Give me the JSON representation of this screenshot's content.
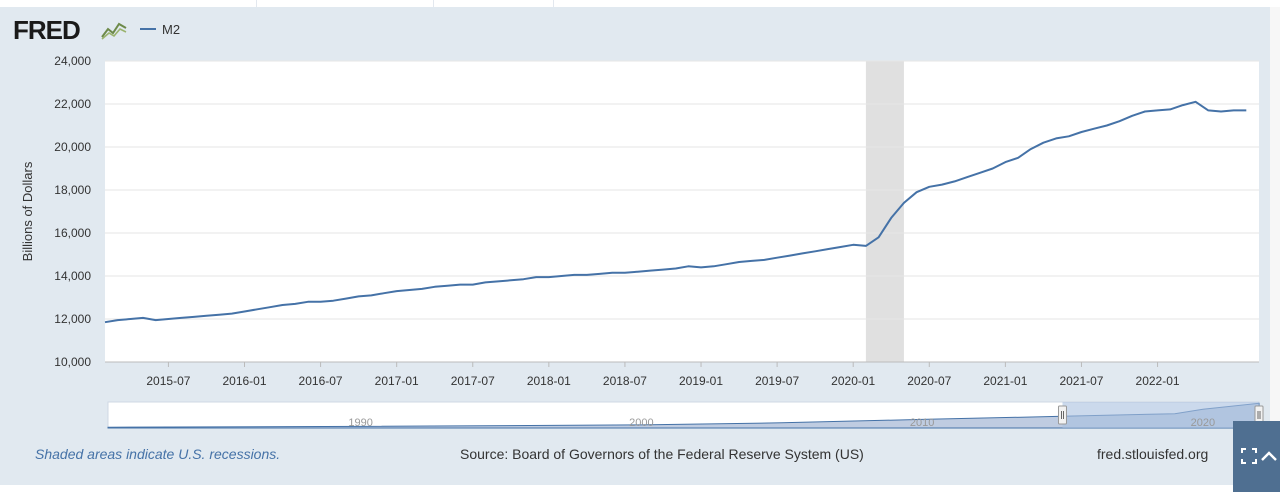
{
  "header": {
    "logo_text": "FRED",
    "legend_label": "M2"
  },
  "colors": {
    "series": "#4572a7",
    "recession": "#e0e0e0",
    "panel": "#e1e9f0",
    "plot_bg": "#ffffff",
    "grid": "#e6e6e6",
    "navigator_fill": "#8ba3c8",
    "navigator_selected": "#a9bfe0"
  },
  "chart_data": {
    "type": "line",
    "title": "M2",
    "xlabel": "",
    "ylabel": "Billions of Dollars",
    "ylim": [
      10000,
      24000
    ],
    "yticks": [
      "10,000",
      "12,000",
      "14,000",
      "16,000",
      "18,000",
      "20,000",
      "22,000",
      "24,000"
    ],
    "xticks": [
      "2015-07",
      "2016-01",
      "2016-07",
      "2017-01",
      "2017-07",
      "2018-01",
      "2018-07",
      "2019-01",
      "2019-07",
      "2020-01",
      "2020-07",
      "2021-01",
      "2021-07",
      "2022-01"
    ],
    "x_range": [
      "2015-02",
      "2022-09"
    ],
    "recession": {
      "start": "2020-02",
      "end": "2020-04"
    },
    "grid": true,
    "series": [
      {
        "name": "M2",
        "frequency": "approx-monthly",
        "points": [
          [
            "2015-02",
            11850
          ],
          [
            "2015-03",
            11950
          ],
          [
            "2015-04",
            12000
          ],
          [
            "2015-05",
            12050
          ],
          [
            "2015-06",
            11950
          ],
          [
            "2015-07",
            12000
          ],
          [
            "2015-08",
            12050
          ],
          [
            "2015-09",
            12100
          ],
          [
            "2015-10",
            12150
          ],
          [
            "2015-11",
            12200
          ],
          [
            "2015-12",
            12250
          ],
          [
            "2016-01",
            12350
          ],
          [
            "2016-02",
            12450
          ],
          [
            "2016-03",
            12550
          ],
          [
            "2016-04",
            12650
          ],
          [
            "2016-05",
            12700
          ],
          [
            "2016-06",
            12800
          ],
          [
            "2016-07",
            12800
          ],
          [
            "2016-08",
            12850
          ],
          [
            "2016-09",
            12950
          ],
          [
            "2016-10",
            13050
          ],
          [
            "2016-11",
            13100
          ],
          [
            "2016-12",
            13200
          ],
          [
            "2017-01",
            13300
          ],
          [
            "2017-02",
            13350
          ],
          [
            "2017-03",
            13400
          ],
          [
            "2017-04",
            13500
          ],
          [
            "2017-05",
            13550
          ],
          [
            "2017-06",
            13600
          ],
          [
            "2017-07",
            13600
          ],
          [
            "2017-08",
            13700
          ],
          [
            "2017-09",
            13750
          ],
          [
            "2017-10",
            13800
          ],
          [
            "2017-11",
            13850
          ],
          [
            "2017-12",
            13950
          ],
          [
            "2018-01",
            13950
          ],
          [
            "2018-02",
            14000
          ],
          [
            "2018-03",
            14050
          ],
          [
            "2018-04",
            14050
          ],
          [
            "2018-05",
            14100
          ],
          [
            "2018-06",
            14150
          ],
          [
            "2018-07",
            14150
          ],
          [
            "2018-08",
            14200
          ],
          [
            "2018-09",
            14250
          ],
          [
            "2018-10",
            14300
          ],
          [
            "2018-11",
            14350
          ],
          [
            "2018-12",
            14450
          ],
          [
            "2019-01",
            14400
          ],
          [
            "2019-02",
            14450
          ],
          [
            "2019-03",
            14550
          ],
          [
            "2019-04",
            14650
          ],
          [
            "2019-05",
            14700
          ],
          [
            "2019-06",
            14750
          ],
          [
            "2019-07",
            14850
          ],
          [
            "2019-08",
            14950
          ],
          [
            "2019-09",
            15050
          ],
          [
            "2019-10",
            15150
          ],
          [
            "2019-11",
            15250
          ],
          [
            "2019-12",
            15350
          ],
          [
            "2020-01",
            15450
          ],
          [
            "2020-02",
            15400
          ],
          [
            "2020-03",
            15800
          ],
          [
            "2020-04",
            16700
          ],
          [
            "2020-05",
            17400
          ],
          [
            "2020-06",
            17900
          ],
          [
            "2020-07",
            18150
          ],
          [
            "2020-08",
            18250
          ],
          [
            "2020-09",
            18400
          ],
          [
            "2020-10",
            18600
          ],
          [
            "2020-11",
            18800
          ],
          [
            "2020-12",
            19000
          ],
          [
            "2021-01",
            19300
          ],
          [
            "2021-02",
            19500
          ],
          [
            "2021-03",
            19900
          ],
          [
            "2021-04",
            20200
          ],
          [
            "2021-05",
            20400
          ],
          [
            "2021-06",
            20500
          ],
          [
            "2021-07",
            20700
          ],
          [
            "2021-08",
            20850
          ],
          [
            "2021-09",
            21000
          ],
          [
            "2021-10",
            21200
          ],
          [
            "2021-11",
            21450
          ],
          [
            "2021-12",
            21650
          ],
          [
            "2022-01",
            21700
          ],
          [
            "2022-02",
            21750
          ],
          [
            "2022-03",
            21950
          ],
          [
            "2022-04",
            22100
          ],
          [
            "2022-05",
            21700
          ],
          [
            "2022-06",
            21650
          ],
          [
            "2022-07",
            21700
          ],
          [
            "2022-08",
            21700
          ]
        ]
      }
    ],
    "navigator": {
      "labels": [
        "1990",
        "2000",
        "2010",
        "2020"
      ],
      "range": [
        "1981",
        "2022"
      ],
      "selected": [
        "2015",
        "2022"
      ]
    }
  },
  "footer": {
    "recession_note": "Shaded areas indicate U.S. recessions.",
    "source": "Source: Board of Governors of the Federal Reserve System (US)",
    "site": "fred.stlouisfed.org"
  },
  "controls": {
    "fullscreen_icon": "expand-icon",
    "collapse_icon": "chevron-up-icon"
  }
}
